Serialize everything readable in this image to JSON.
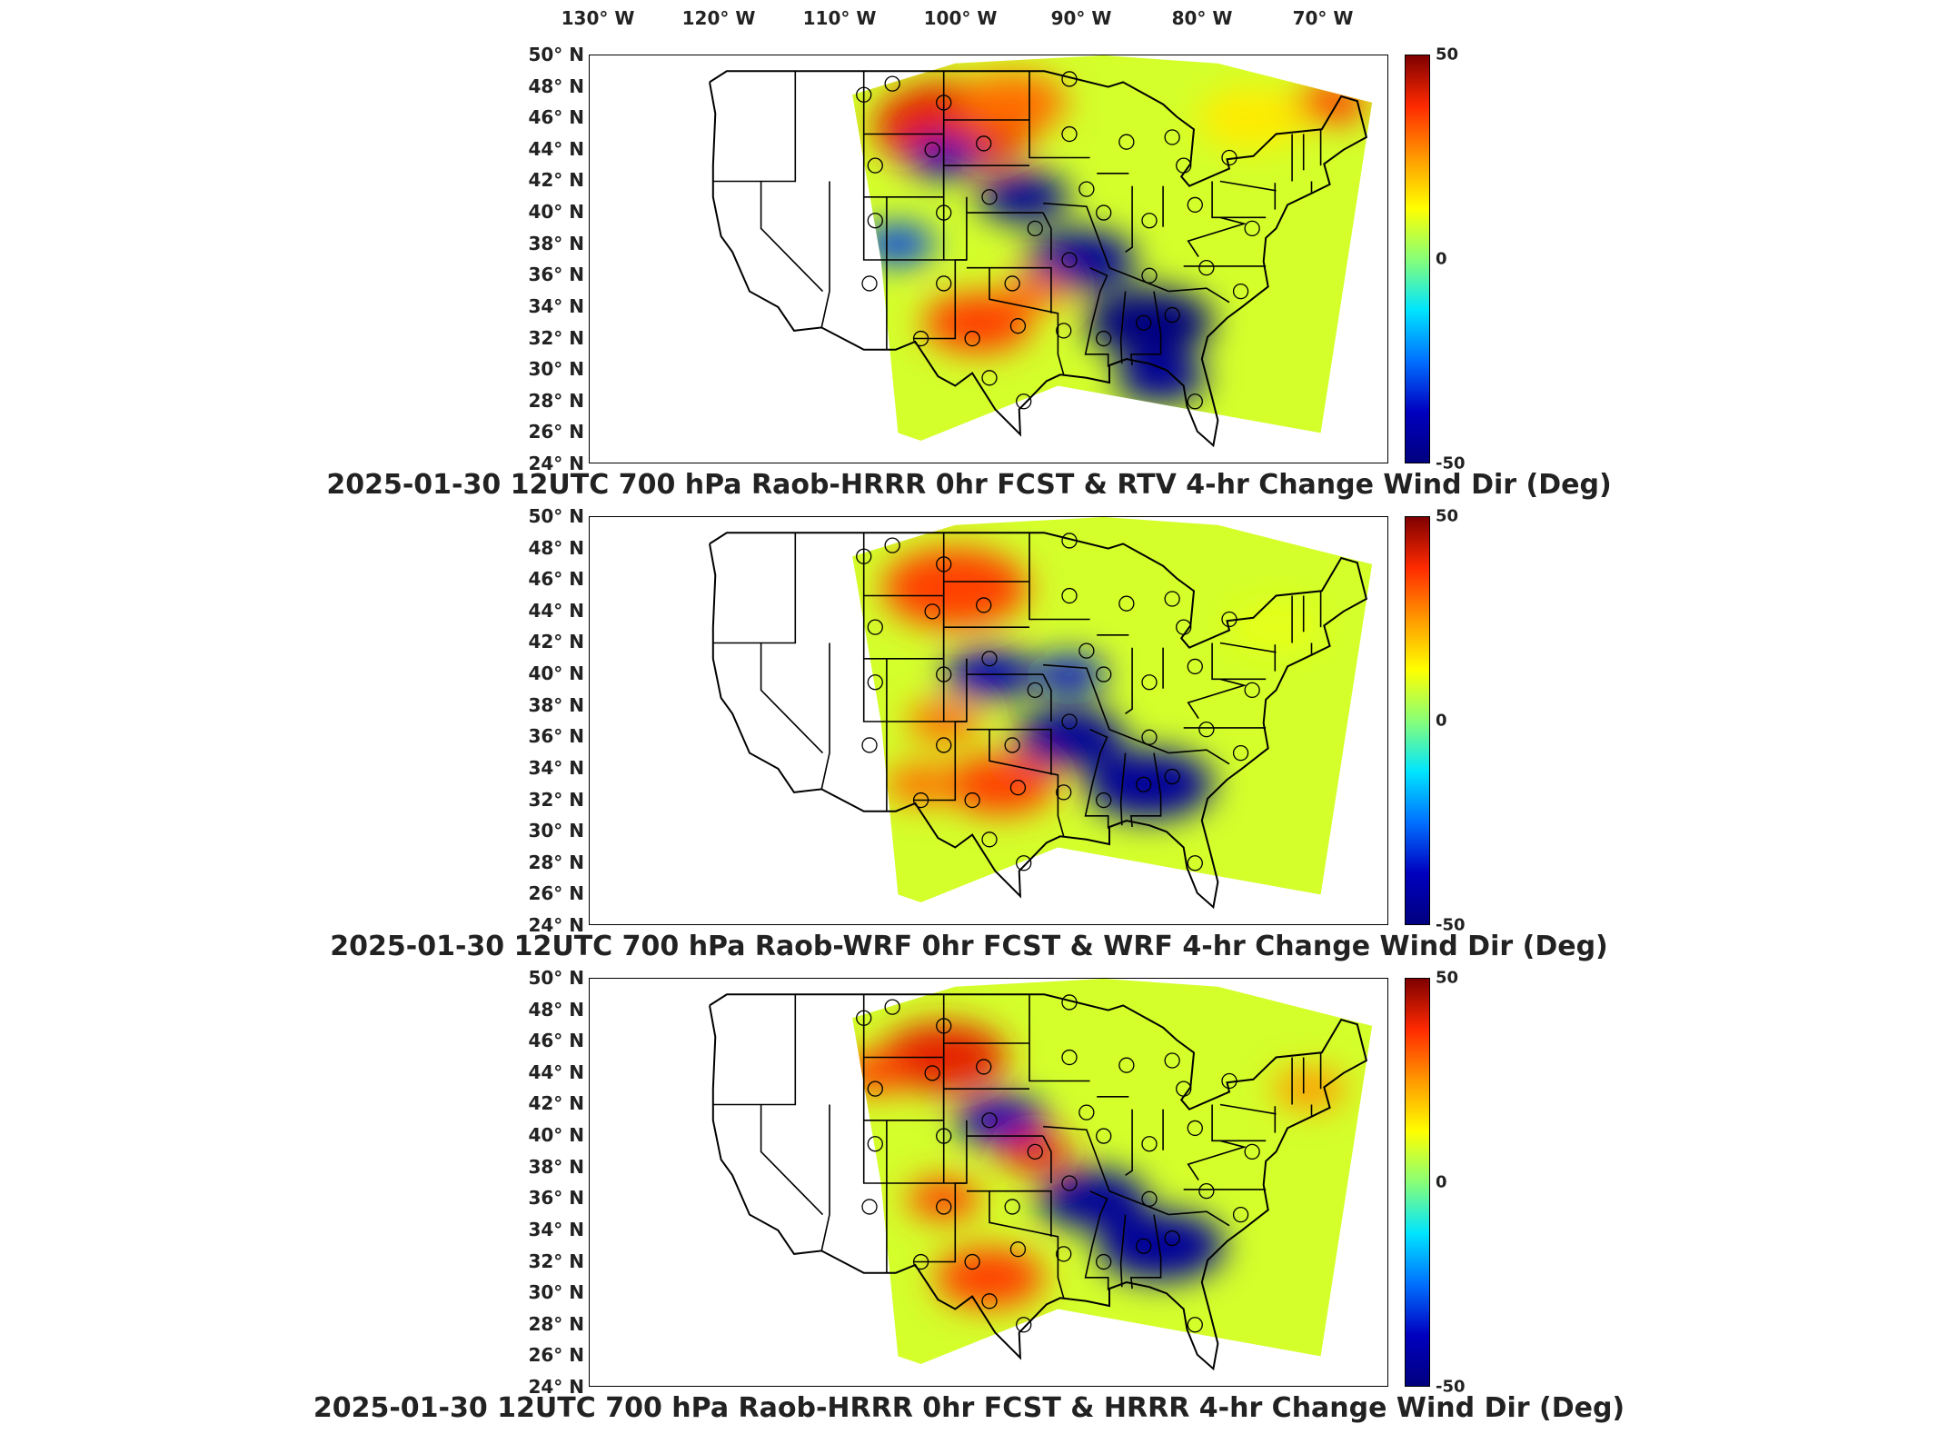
{
  "lon_ticks": [
    "130° W",
    "120° W",
    "110° W",
    "100° W",
    "90° W",
    "80° W",
    "70° W"
  ],
  "lat_ticks": [
    "50° N",
    "48° N",
    "46° N",
    "44° N",
    "42° N",
    "40° N",
    "38° N",
    "36° N",
    "34° N",
    "32° N",
    "30° N",
    "28° N",
    "26° N",
    "24° N"
  ],
  "colorbar": {
    "max": "50",
    "mid": "0",
    "min": "-50",
    "colors": [
      "#7f0000",
      "#ff2a00",
      "#ff9900",
      "#ffff00",
      "#88ff77",
      "#00e5ff",
      "#0070ff",
      "#0000c0",
      "#00007f"
    ]
  },
  "panels": [
    {
      "title": "2025-01-30 12UTC 700 hPa Raob-HRRR 0hr FCST & RTV 4-hr Change Wind Dir (Deg)"
    },
    {
      "title": "2025-01-30 12UTC 700 hPa Raob-WRF 0hr FCST & WRF 4-hr Change Wind Dir (Deg)"
    },
    {
      "title": "2025-01-30 12UTC 700 hPa Raob-HRRR 0hr FCST & HRRR 4-hr Change Wind Dir (Deg)"
    }
  ],
  "chart_data": {
    "type": "heatmap",
    "x_axis": {
      "label": "",
      "range": [
        -135,
        -65
      ],
      "ticks": [
        -130,
        -120,
        -110,
        -100,
        -90,
        -80,
        -70
      ]
    },
    "y_axis": {
      "label": "",
      "range": [
        24,
        50
      ],
      "ticks": [
        50,
        48,
        46,
        44,
        42,
        40,
        38,
        36,
        34,
        32,
        30,
        28,
        26,
        24
      ]
    },
    "color_range": [
      -50,
      50
    ],
    "colormap": "jet",
    "grid": false,
    "legend": "colorbar-right",
    "raob_stations": [
      {
        "lon": -111.0,
        "lat": 47.5
      },
      {
        "lon": -108.5,
        "lat": 48.2
      },
      {
        "lon": -104.0,
        "lat": 47.0
      },
      {
        "lon": -110.0,
        "lat": 43.0
      },
      {
        "lon": -105.0,
        "lat": 44.0
      },
      {
        "lon": -100.5,
        "lat": 44.4
      },
      {
        "lon": -93.0,
        "lat": 48.5
      },
      {
        "lon": -93.0,
        "lat": 45.0
      },
      {
        "lon": -88.0,
        "lat": 44.5
      },
      {
        "lon": -84.0,
        "lat": 44.8
      },
      {
        "lon": -83.0,
        "lat": 43.0
      },
      {
        "lon": -79.0,
        "lat": 43.5
      },
      {
        "lon": -110.0,
        "lat": 39.5
      },
      {
        "lon": -104.0,
        "lat": 40.0
      },
      {
        "lon": -100.0,
        "lat": 41.0
      },
      {
        "lon": -96.0,
        "lat": 39.0
      },
      {
        "lon": -91.5,
        "lat": 41.5
      },
      {
        "lon": -90.0,
        "lat": 40.0
      },
      {
        "lon": -86.0,
        "lat": 39.5
      },
      {
        "lon": -82.0,
        "lat": 40.5
      },
      {
        "lon": -77.0,
        "lat": 39.0
      },
      {
        "lon": -110.5,
        "lat": 35.5
      },
      {
        "lon": -104.0,
        "lat": 35.5
      },
      {
        "lon": -98.0,
        "lat": 35.5
      },
      {
        "lon": -93.0,
        "lat": 37.0
      },
      {
        "lon": -86.0,
        "lat": 36.0
      },
      {
        "lon": -81.0,
        "lat": 36.5
      },
      {
        "lon": -78.0,
        "lat": 35.0
      },
      {
        "lon": -106.0,
        "lat": 32.0
      },
      {
        "lon": -101.5,
        "lat": 32.0
      },
      {
        "lon": -97.5,
        "lat": 32.8
      },
      {
        "lon": -93.5,
        "lat": 32.5
      },
      {
        "lon": -90.0,
        "lat": 32.0
      },
      {
        "lon": -86.5,
        "lat": 33.0
      },
      {
        "lon": -84.0,
        "lat": 33.5
      },
      {
        "lon": -100.0,
        "lat": 29.5
      },
      {
        "lon": -97.0,
        "lat": 28.0
      },
      {
        "lon": -82.0,
        "lat": 28.0
      }
    ]
  }
}
